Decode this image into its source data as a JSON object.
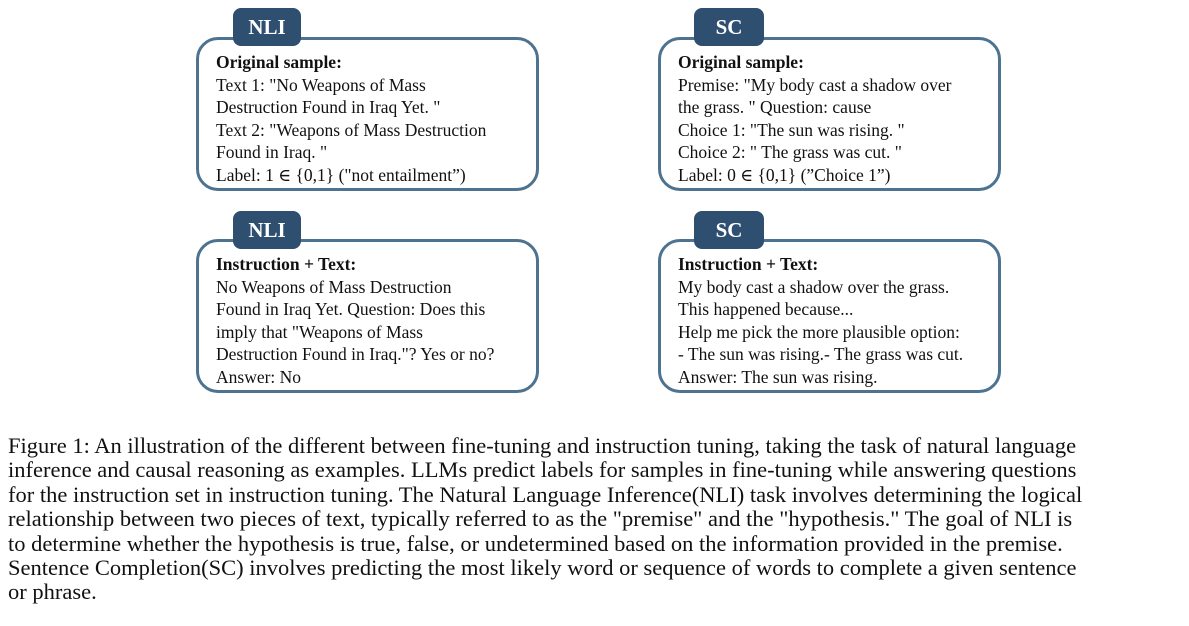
{
  "panels": [
    {
      "tag": "NLI",
      "heading": "Original sample:",
      "lines": [
        "Text 1: \"No Weapons of Mass",
        "Destruction Found in Iraq Yet. \"",
        "Text 2: \"Weapons of Mass Destruction",
        "Found in Iraq. \"",
        "Label: 1 ∈ {0,1} (\"not entailment”)"
      ]
    },
    {
      "tag": "SC",
      "heading": "Original sample:",
      "lines": [
        "Premise: \"My body cast a shadow over",
        "the grass. \" Question: cause",
        "Choice 1: \"The sun was rising. \"",
        "Choice 2: \" The grass was cut. \"",
        "Label: 0 ∈ {0,1} (”Choice 1”)"
      ]
    },
    {
      "tag": "NLI",
      "heading": "Instruction + Text:",
      "lines": [
        "No Weapons of Mass Destruction",
        "Found in Iraq Yet. Question: Does this",
        "imply that \"Weapons of Mass",
        "Destruction Found in Iraq.\"? Yes or no?",
        "Answer: No"
      ]
    },
    {
      "tag": "SC",
      "heading": "Instruction + Text:",
      "lines": [
        "My body cast a shadow over the grass.",
        "This happened because...",
        "Help me pick the more plausible option:",
        "- The sun was rising.- The grass was cut.",
        "Answer: The sun was rising."
      ]
    }
  ],
  "caption": [
    "Figure 1: An illustration of the different between fine-tuning and instruction tuning, taking the task of natural language",
    "inference and causal reasoning as examples. LLMs predict labels for samples in fine-tuning while answering questions",
    "for the instruction set in instruction tuning. The Natural Language Inference(NLI) task involves determining the logical",
    "relationship between two pieces of text, typically referred to as the \"premise\" and the \"hypothesis.\" The goal of NLI is",
    "to determine whether the hypothesis is true, false, or undetermined based on the information provided in the premise.",
    "Sentence Completion(SC) involves predicting the most likely word or sequence of words to complete a given sentence",
    "or phrase."
  ]
}
